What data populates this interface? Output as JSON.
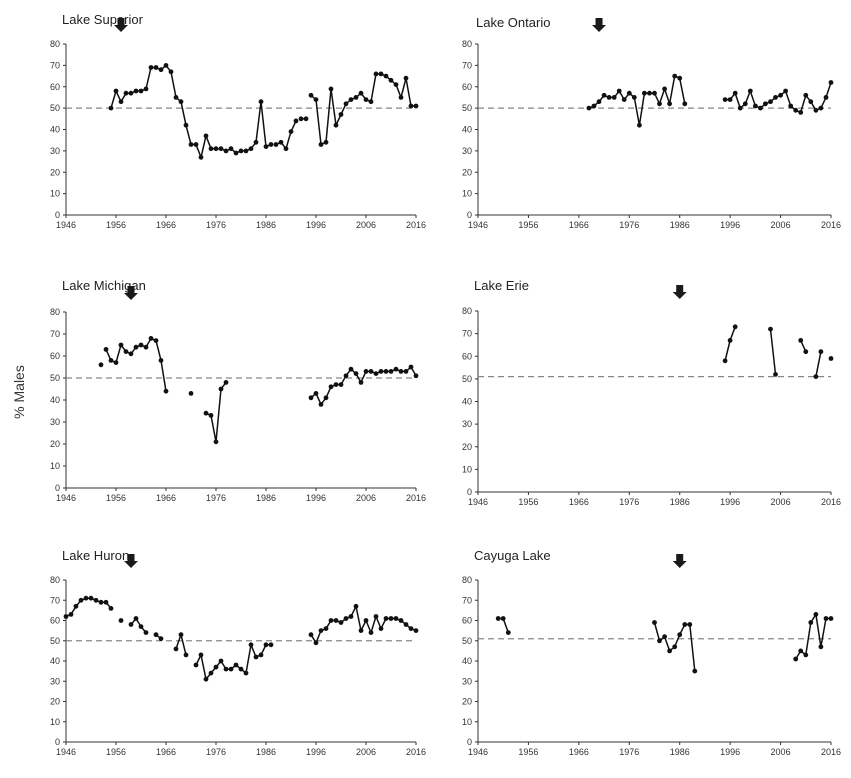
{
  "figure": {
    "ylabel": "% Males"
  },
  "chart_data": [
    {
      "type": "line",
      "title": "Lake Superior",
      "xlim": [
        1946,
        2016
      ],
      "ylim": [
        0,
        80
      ],
      "xticks": [
        1946,
        1956,
        1966,
        1976,
        1986,
        1996,
        2006,
        2016
      ],
      "yticks": [
        0,
        10,
        20,
        30,
        40,
        50,
        60,
        70,
        80
      ],
      "reference_line": 50,
      "arrow_year": 1957,
      "segments": [
        {
          "x": [
            1955,
            1956,
            1957,
            1958,
            1959,
            1960,
            1961,
            1962,
            1963,
            1964,
            1965,
            1966,
            1967,
            1968,
            1969,
            1970,
            1971,
            1972,
            1973,
            1974,
            1975,
            1976,
            1977,
            1978,
            1979,
            1980,
            1981,
            1982,
            1983,
            1984,
            1985,
            1986,
            1987
          ],
          "y": [
            50,
            58,
            53,
            57,
            57,
            58,
            58,
            59,
            69,
            69,
            68,
            70,
            67,
            55,
            53,
            42,
            33,
            33,
            27,
            37,
            31,
            31,
            31,
            30,
            31,
            29,
            30,
            30,
            31,
            34,
            53,
            32,
            33
          ]
        },
        {
          "x": [
            1988,
            1989,
            1990,
            1991,
            1992
          ],
          "y": [
            33,
            34,
            31,
            39,
            44
          ]
        },
        {
          "x": [
            1993,
            1994
          ],
          "y": [
            45,
            45
          ]
        },
        {
          "x": [
            1995,
            1996,
            1997,
            1998,
            1999,
            2000,
            2001,
            2002,
            2003,
            2004,
            2005,
            2006,
            2007,
            2008,
            2009,
            2010,
            2011,
            2012,
            2013,
            2014,
            2015,
            2016
          ],
          "y": [
            56,
            54,
            33,
            34,
            59,
            42,
            47,
            52,
            54,
            55,
            57,
            54,
            53,
            66,
            66,
            65,
            63,
            61,
            55,
            64,
            51,
            51
          ]
        }
      ]
    },
    {
      "type": "line",
      "title": "Lake Ontario",
      "xlim": [
        1946,
        2016
      ],
      "ylim": [
        0,
        80
      ],
      "xticks": [
        1946,
        1956,
        1966,
        1976,
        1986,
        1996,
        2006,
        2016
      ],
      "yticks": [
        0,
        10,
        20,
        30,
        40,
        50,
        60,
        70,
        80
      ],
      "reference_line": 50,
      "arrow_year": 1970,
      "segments": [
        {
          "x": [
            1968,
            1969,
            1970,
            1971,
            1972,
            1973,
            1974,
            1975,
            1976,
            1977,
            1978,
            1979,
            1980,
            1981,
            1982,
            1983,
            1984,
            1985,
            1986,
            1987
          ],
          "y": [
            50,
            51,
            53,
            56,
            55,
            55,
            58,
            54,
            57,
            55,
            42,
            57,
            57,
            57,
            52,
            59,
            52,
            65,
            64,
            52
          ]
        },
        {
          "x": [
            1995,
            1996,
            1997,
            1998,
            1999,
            2000,
            2001,
            2002,
            2003,
            2004,
            2005,
            2006,
            2007,
            2008,
            2009,
            2010,
            2011,
            2012,
            2013,
            2014,
            2015,
            2016
          ],
          "y": [
            54,
            54,
            57,
            50,
            52,
            58,
            51,
            50,
            52,
            53,
            55,
            56,
            58,
            51,
            49,
            48,
            56,
            53,
            49,
            50,
            55,
            62
          ]
        }
      ]
    },
    {
      "type": "line",
      "title": "Lake Michigan",
      "xlim": [
        1946,
        2016
      ],
      "ylim": [
        0,
        80
      ],
      "xticks": [
        1946,
        1956,
        1966,
        1976,
        1986,
        1996,
        2006,
        2016
      ],
      "yticks": [
        0,
        10,
        20,
        30,
        40,
        50,
        60,
        70,
        80
      ],
      "reference_line": 50,
      "arrow_year": 1959,
      "segments": [
        {
          "x": [
            1953
          ],
          "y": [
            56
          ]
        },
        {
          "x": [
            1954,
            1955,
            1956,
            1957,
            1958,
            1959,
            1960,
            1961,
            1962,
            1963,
            1964,
            1965,
            1966
          ],
          "y": [
            63,
            58,
            57,
            65,
            62,
            61,
            64,
            65,
            64,
            68,
            67,
            58,
            44
          ]
        },
        {
          "x": [
            1971
          ],
          "y": [
            43
          ]
        },
        {
          "x": [
            1974,
            1975,
            1976,
            1977,
            1978
          ],
          "y": [
            34,
            33,
            21,
            45,
            48
          ]
        },
        {
          "x": [
            1995,
            1996,
            1997,
            1998,
            1999,
            2000,
            2001,
            2002,
            2003,
            2004,
            2005,
            2006,
            2007,
            2008,
            2009,
            2010,
            2011,
            2012,
            2013,
            2014,
            2015,
            2016
          ],
          "y": [
            41,
            43,
            38,
            41,
            46,
            47,
            47,
            51,
            54,
            52,
            48,
            53,
            53,
            52,
            53,
            53,
            53,
            54,
            53,
            53,
            55,
            51
          ]
        }
      ]
    },
    {
      "type": "line",
      "title": "Lake Erie",
      "xlim": [
        1946,
        2016
      ],
      "ylim": [
        0,
        80
      ],
      "xticks": [
        1946,
        1956,
        1966,
        1976,
        1986,
        1996,
        2006,
        2016
      ],
      "yticks": [
        0,
        10,
        20,
        30,
        40,
        50,
        60,
        70,
        80
      ],
      "reference_line": 51,
      "arrow_year": 1986,
      "segments": [
        {
          "x": [
            1995,
            1996,
            1997
          ],
          "y": [
            58,
            67,
            73
          ]
        },
        {
          "x": [
            2004,
            2005
          ],
          "y": [
            72,
            52
          ]
        },
        {
          "x": [
            2010,
            2011
          ],
          "y": [
            67,
            62
          ]
        },
        {
          "x": [
            2013,
            2014
          ],
          "y": [
            51,
            62
          ]
        },
        {
          "x": [
            2016
          ],
          "y": [
            59
          ]
        }
      ]
    },
    {
      "type": "line",
      "title": "Lake Huron",
      "xlim": [
        1946,
        2016
      ],
      "ylim": [
        0,
        80
      ],
      "xticks": [
        1946,
        1956,
        1966,
        1976,
        1986,
        1996,
        2006,
        2016
      ],
      "yticks": [
        0,
        10,
        20,
        30,
        40,
        50,
        60,
        70,
        80
      ],
      "reference_line": 50,
      "arrow_year": 1959,
      "segments": [
        {
          "x": [
            1946,
            1947,
            1948,
            1949,
            1950,
            1951,
            1952,
            1953,
            1954,
            1955
          ],
          "y": [
            62,
            63,
            67,
            70,
            71,
            71,
            70,
            69,
            69,
            66
          ]
        },
        {
          "x": [
            1957
          ],
          "y": [
            60
          ]
        },
        {
          "x": [
            1959,
            1960,
            1961,
            1962
          ],
          "y": [
            58,
            61,
            57,
            54
          ]
        },
        {
          "x": [
            1964,
            1965
          ],
          "y": [
            53,
            51
          ]
        },
        {
          "x": [
            1968,
            1969,
            1970
          ],
          "y": [
            46,
            53,
            43
          ]
        },
        {
          "x": [
            1972,
            1973,
            1974,
            1975,
            1976,
            1977,
            1978,
            1979,
            1980,
            1981,
            1982,
            1983,
            1984,
            1985,
            1986,
            1987
          ],
          "y": [
            38,
            43,
            31,
            34,
            37,
            40,
            36,
            36,
            38,
            36,
            34,
            48,
            42,
            43,
            48,
            48
          ]
        },
        {
          "x": [
            1995,
            1996,
            1997,
            1998,
            1999,
            2000,
            2001,
            2002,
            2003,
            2004,
            2005,
            2006,
            2007,
            2008,
            2009,
            2010,
            2011,
            2012,
            2013,
            2014,
            2015,
            2016
          ],
          "y": [
            53,
            49,
            55,
            56,
            60,
            60,
            59,
            61,
            62,
            67,
            55,
            60,
            54,
            62,
            56,
            61,
            61,
            61,
            60,
            58,
            56,
            55
          ]
        }
      ]
    },
    {
      "type": "line",
      "title": "Cayuga Lake",
      "xlim": [
        1946,
        2016
      ],
      "ylim": [
        0,
        80
      ],
      "xticks": [
        1946,
        1956,
        1966,
        1976,
        1986,
        1996,
        2006,
        2016
      ],
      "yticks": [
        0,
        10,
        20,
        30,
        40,
        50,
        60,
        70,
        80
      ],
      "reference_line": 51,
      "arrow_year": 1986,
      "segments": [
        {
          "x": [
            1950,
            1951,
            1952
          ],
          "y": [
            61,
            61,
            54
          ]
        },
        {
          "x": [
            1981,
            1982,
            1983,
            1984,
            1985,
            1986,
            1987,
            1988,
            1989
          ],
          "y": [
            59,
            50,
            52,
            45,
            47,
            53,
            58,
            58,
            35
          ]
        },
        {
          "x": [
            2009,
            2010,
            2011,
            2012,
            2013,
            2014,
            2015,
            2016
          ],
          "y": [
            41,
            45,
            43,
            59,
            63,
            47,
            61,
            61
          ]
        }
      ]
    }
  ]
}
